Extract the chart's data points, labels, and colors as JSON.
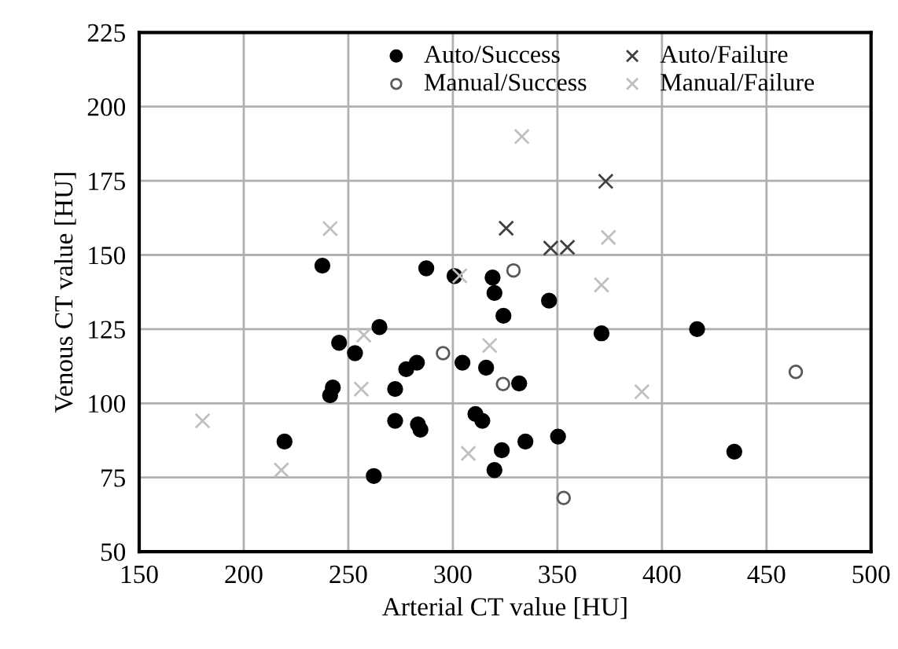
{
  "chart_data": {
    "type": "scatter",
    "xlabel": "Arterial CT value [HU]",
    "ylabel": "Venous CT value [HU]",
    "xlim": [
      150,
      500
    ],
    "xticks": [
      150,
      200,
      250,
      300,
      350,
      400,
      450,
      500
    ],
    "ylim": [
      50,
      225
    ],
    "yticks": [
      50,
      75,
      100,
      125,
      150,
      175,
      200,
      225
    ],
    "grid": true,
    "legend": "top",
    "series": [
      {
        "name": "Auto/Success",
        "color": "#000000",
        "marker": "circle",
        "x": [
          237.6,
          287.3,
          300.8,
          319,
          319.9,
          324.2,
          264.9,
          245.6,
          253.2,
          277.7,
          282.8,
          304.6,
          315.9,
          242.6,
          241.3,
          272.4,
          310.8,
          314.1,
          272.4,
          283.3,
          284.5,
          219.5,
          262.2,
          323.4,
          319.9,
          331.7,
          346,
          371.1,
          416.8,
          334.7,
          350.3,
          434.6
        ],
        "values": [
          146.4,
          145.5,
          142.9,
          142.4,
          137.2,
          129.5,
          125.7,
          120.4,
          116.9,
          111.5,
          113.7,
          113.7,
          112,
          105.3,
          102.7,
          104.8,
          96.4,
          94.1,
          94.1,
          92.9,
          91.1,
          87.1,
          75.5,
          84.2,
          77.5,
          106.7,
          134.6,
          123.6,
          125,
          87.1,
          88.8,
          83.7
        ]
      },
      {
        "name": "Auto/Failure",
        "color": "#404040",
        "marker": "cross",
        "x": [
          325.5,
          373.1,
          346.8,
          354.8
        ],
        "values": [
          159,
          174.8,
          152.3,
          152.6
        ]
      },
      {
        "name": "Manual/Success",
        "color": "#595959",
        "marker": "circle",
        "x": [
          329,
          295.3,
          324,
          464,
          353
        ],
        "values": [
          144.8,
          116.9,
          106.5,
          110.6,
          68.1
        ]
      },
      {
        "name": "Manual/Failure",
        "color": "#bfbfbf",
        "marker": "cross",
        "x": [
          333,
          374.4,
          371.1,
          241.3,
          303.3,
          257.4,
          256.2,
          180.3,
          218,
          307.4,
          317.6,
          390.4
        ],
        "values": [
          189.9,
          155.9,
          139.9,
          158.9,
          143,
          123,
          104.8,
          94.1,
          77.5,
          83.1,
          119.5,
          103.9
        ]
      }
    ]
  }
}
